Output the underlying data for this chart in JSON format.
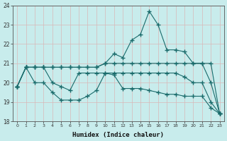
{
  "xlabel": "Humidex (Indice chaleur)",
  "background_color": "#c8ecec",
  "grid_color": "#b8d8d8",
  "line_color": "#1a6b6b",
  "hours": [
    0,
    1,
    2,
    3,
    4,
    5,
    6,
    7,
    8,
    9,
    10,
    11,
    12,
    13,
    14,
    15,
    16,
    17,
    18,
    19,
    20,
    21,
    22,
    23
  ],
  "line_top": [
    19.8,
    20.8,
    20.8,
    20.8,
    20.8,
    20.8,
    20.8,
    20.8,
    20.8,
    20.8,
    21.0,
    21.5,
    21.3,
    22.2,
    22.5,
    23.7,
    23.0,
    21.7,
    21.7,
    21.6,
    21.0,
    21.0,
    21.0,
    18.4
  ],
  "line_upper_mid": [
    19.8,
    20.8,
    20.8,
    20.8,
    20.8,
    20.8,
    20.8,
    20.8,
    20.8,
    20.8,
    21.0,
    21.0,
    21.0,
    21.0,
    21.0,
    21.0,
    21.0,
    21.0,
    21.0,
    21.0,
    21.0,
    21.0,
    20.0,
    18.4
  ],
  "line_lower_mid": [
    19.8,
    20.8,
    20.8,
    20.8,
    20.0,
    19.8,
    19.6,
    20.5,
    20.5,
    20.5,
    20.5,
    20.5,
    20.5,
    20.5,
    20.5,
    20.5,
    20.5,
    20.5,
    20.5,
    20.3,
    20.0,
    20.0,
    19.0,
    18.4
  ],
  "line_bot": [
    19.8,
    20.8,
    20.0,
    20.0,
    19.5,
    19.1,
    19.1,
    19.1,
    19.3,
    19.6,
    20.5,
    20.4,
    19.7,
    19.7,
    19.7,
    19.6,
    19.5,
    19.4,
    19.4,
    19.3,
    19.3,
    19.3,
    18.7,
    18.4
  ],
  "ylim": [
    18,
    24
  ],
  "yticks": [
    18,
    19,
    20,
    21,
    22,
    23,
    24
  ]
}
